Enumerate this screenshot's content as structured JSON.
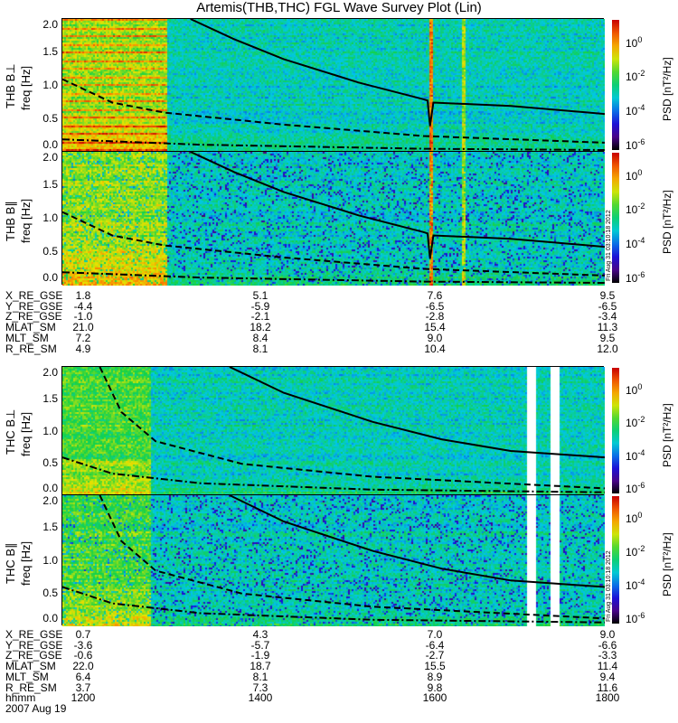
{
  "title": "Artemis(THB,THC) FGL Wave Survey Plot (Lin)",
  "stamp": "Fri Aug 31 03:10:18 2012",
  "date_label": "2007 Aug 19",
  "colors": {
    "line": "#000000",
    "gap": "#ffffff"
  },
  "chart_data": {
    "type": "heatmap",
    "title": "Artemis(THB,THC) FGL Wave Survey Plot (Lin)",
    "xlabel": "hhmm",
    "x_range_hours": [
      11.44,
      17.96
    ],
    "x_ticks": [
      "1200",
      "1400",
      "1600",
      "1800"
    ],
    "x_tick_hours": [
      12,
      14,
      16,
      18
    ],
    "ylim": [
      0,
      2.0
    ],
    "y_ticks": [
      "0.0",
      "0.5",
      "1.0",
      "1.5",
      "2.0"
    ],
    "colorbar": {
      "label": "PSD [nT²/Hz]",
      "log_range": [
        -6.2,
        1.4
      ],
      "ticks": [
        {
          "base": "10",
          "exp": "0"
        },
        {
          "base": "10",
          "exp": "-2"
        },
        {
          "base": "10",
          "exp": "-4"
        },
        {
          "base": "10",
          "exp": "-6"
        }
      ],
      "tick_exps": [
        0,
        -2,
        -4,
        -6
      ]
    },
    "panels": [
      {
        "name": "THB B⊥",
        "ylabel": "freq [Hz]",
        "probe": "THB",
        "component": "perp",
        "hot_until_hour": 12.69,
        "stripes": [
          15.86,
          16.26
        ],
        "gaps": [],
        "solid": [
          [
            12.98,
            2.0
          ],
          [
            13.5,
            1.7
          ],
          [
            14.1,
            1.4
          ],
          [
            15.0,
            1.05
          ],
          [
            15.78,
            0.8
          ],
          [
            15.83,
            0.78
          ],
          [
            15.86,
            0.4
          ],
          [
            15.9,
            0.75
          ],
          [
            16.83,
            0.7
          ],
          [
            17.96,
            0.58
          ]
        ],
        "dashed": [
          [
            11.44,
            1.1
          ],
          [
            12.04,
            0.75
          ],
          [
            12.67,
            0.6
          ],
          [
            14.1,
            0.42
          ],
          [
            15.78,
            0.25
          ],
          [
            17.96,
            0.15
          ]
        ],
        "dashdot": [
          [
            11.44,
            0.2
          ],
          [
            13.1,
            0.12
          ],
          [
            15.78,
            0.06
          ],
          [
            17.96,
            0.04
          ]
        ]
      },
      {
        "name": "THB B∥",
        "ylabel": "freq [Hz]",
        "probe": "THB",
        "component": "par",
        "hot_until_hour": 12.69,
        "stripes": [
          15.86,
          16.26
        ],
        "gaps": [],
        "solid": [
          [
            12.98,
            2.0
          ],
          [
            13.5,
            1.7
          ],
          [
            14.1,
            1.4
          ],
          [
            15.0,
            1.05
          ],
          [
            15.78,
            0.8
          ],
          [
            15.83,
            0.78
          ],
          [
            15.86,
            0.4
          ],
          [
            15.9,
            0.75
          ],
          [
            16.83,
            0.7
          ],
          [
            17.96,
            0.58
          ]
        ],
        "dashed": [
          [
            11.44,
            1.1
          ],
          [
            12.04,
            0.75
          ],
          [
            12.67,
            0.6
          ],
          [
            14.1,
            0.42
          ],
          [
            15.78,
            0.25
          ],
          [
            17.96,
            0.15
          ]
        ],
        "dashdot": [
          [
            11.44,
            0.2
          ],
          [
            13.1,
            0.12
          ],
          [
            15.78,
            0.06
          ],
          [
            17.96,
            0.04
          ]
        ]
      },
      {
        "name": "THC B⊥",
        "ylabel": "freq [Hz]",
        "probe": "THC",
        "component": "perp",
        "hot_until_hour": 12.5,
        "stripes": [],
        "gaps": [
          [
            17.02,
            17.12
          ],
          [
            17.3,
            17.41
          ]
        ],
        "solid": [
          [
            13.45,
            2.0
          ],
          [
            14.1,
            1.6
          ],
          [
            15.17,
            1.15
          ],
          [
            16.0,
            0.88
          ],
          [
            16.83,
            0.7
          ],
          [
            17.96,
            0.6
          ]
        ],
        "dashed": [
          [
            11.89,
            2.0
          ],
          [
            12.15,
            1.3
          ],
          [
            12.56,
            0.85
          ],
          [
            13.6,
            0.5
          ],
          [
            15.17,
            0.3
          ],
          [
            17.96,
            0.12
          ]
        ],
        "dashdot": [
          [
            11.44,
            0.6
          ],
          [
            12.04,
            0.35
          ],
          [
            13.1,
            0.2
          ],
          [
            15.17,
            0.1
          ],
          [
            17.96,
            0.06
          ]
        ]
      },
      {
        "name": "THC B∥",
        "ylabel": "freq [Hz]",
        "probe": "THC",
        "component": "par",
        "hot_until_hour": 12.5,
        "stripes": [],
        "gaps": [
          [
            17.02,
            17.12
          ],
          [
            17.3,
            17.41
          ]
        ],
        "solid": [
          [
            13.45,
            2.0
          ],
          [
            14.1,
            1.6
          ],
          [
            15.17,
            1.15
          ],
          [
            16.0,
            0.88
          ],
          [
            16.83,
            0.7
          ],
          [
            17.96,
            0.6
          ]
        ],
        "dashed": [
          [
            11.89,
            2.0
          ],
          [
            12.15,
            1.3
          ],
          [
            12.56,
            0.85
          ],
          [
            13.6,
            0.5
          ],
          [
            15.17,
            0.3
          ],
          [
            17.96,
            0.12
          ]
        ],
        "dashdot": [
          [
            11.44,
            0.6
          ],
          [
            12.04,
            0.35
          ],
          [
            13.1,
            0.2
          ],
          [
            15.17,
            0.1
          ],
          [
            17.96,
            0.06
          ]
        ]
      }
    ]
  },
  "ephemeris_thb": {
    "labels": [
      "X_RE_GSE",
      "Y_RE_GSE",
      "Z_RE_GSE",
      "MLAT_SM",
      "MLT_SM",
      "R_RE_SM"
    ],
    "values": [
      [
        "1.8",
        "5.1",
        "7.6",
        "9.5"
      ],
      [
        "-4.4",
        "-5.9",
        "-6.5",
        "-6.5"
      ],
      [
        "-1.0",
        "-2.1",
        "-2.8",
        "-3.4"
      ],
      [
        "21.0",
        "18.2",
        "15.4",
        "11.3"
      ],
      [
        "7.2",
        "8.4",
        "9.0",
        "9.5"
      ],
      [
        "4.9",
        "8.1",
        "10.4",
        "12.0"
      ]
    ]
  },
  "ephemeris_thc": {
    "labels": [
      "X_RE_GSE",
      "Y_RE_GSE",
      "Z_RE_GSE",
      "MLAT_SM",
      "MLT_SM",
      "R_RE_SM",
      "hhmm"
    ],
    "values": [
      [
        "0.7",
        "4.3",
        "7.0",
        "9.0"
      ],
      [
        "-3.6",
        "-5.7",
        "-6.4",
        "-6.6"
      ],
      [
        "-0.6",
        "-1.9",
        "-2.7",
        "-3.3"
      ],
      [
        "22.0",
        "18.7",
        "15.5",
        "11.4"
      ],
      [
        "6.4",
        "8.1",
        "8.9",
        "9.4"
      ],
      [
        "3.7",
        "7.3",
        "9.8",
        "11.6"
      ],
      [
        "1200",
        "1400",
        "1600",
        "1800"
      ]
    ]
  }
}
